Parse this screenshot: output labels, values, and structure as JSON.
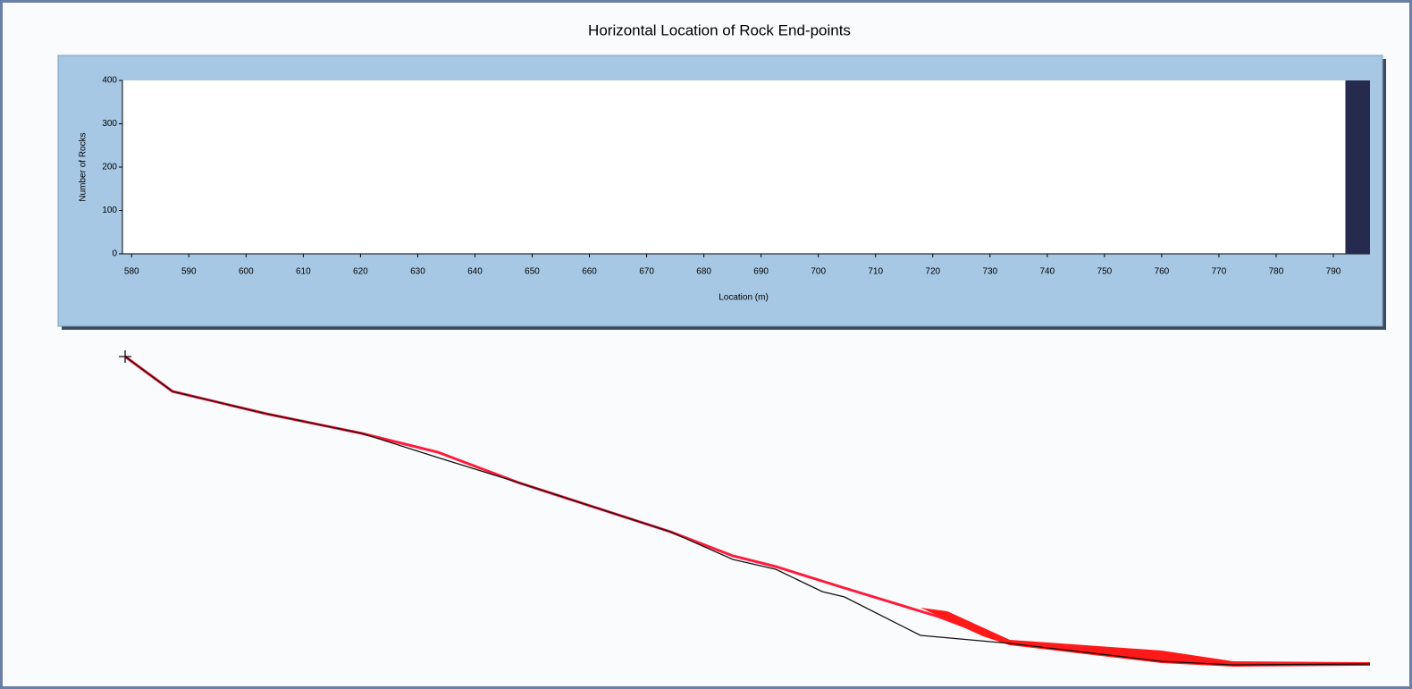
{
  "chart_data": {
    "type": "histogram",
    "title": "Horizontal Location of Rock End-points",
    "x_label": "Location (m)",
    "y_label": "Number of Rocks",
    "bins": [
      792.1,
      796.4
    ],
    "values": [
      400
    ],
    "color": "#262a4e",
    "xlim": [
      578.4,
      796.4
    ],
    "ylim": [
      0,
      400
    ],
    "xticks": [
      580,
      590,
      600,
      610,
      620,
      630,
      640,
      650,
      660,
      670,
      680,
      690,
      700,
      710,
      720,
      730,
      740,
      750,
      760,
      770,
      780,
      790
    ],
    "yticks": [
      0,
      100,
      200,
      300,
      400
    ]
  }
}
